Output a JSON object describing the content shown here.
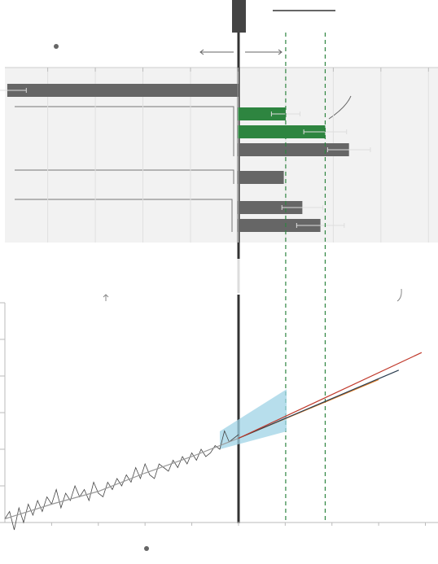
{
  "chart_data": [
    {
      "type": "bar",
      "orientation": "horizontal",
      "values": [
        -4.85,
        1.0,
        1.83,
        2.33,
        0.96,
        1.35,
        1.73
      ],
      "errors": [
        0.4,
        0.3,
        0.45,
        0.45,
        null,
        0.43,
        0.5
      ],
      "colors": [
        "#666666",
        "#2e8540",
        "#2e8540",
        "#666666",
        "#666666",
        "#666666",
        "#666666"
      ],
      "xlim": [
        -4.9,
        4.2
      ],
      "xticks": [
        -4,
        -3,
        -2,
        -1,
        0,
        1,
        2,
        3,
        4
      ],
      "reference_lines": [
        1.0,
        1.83
      ],
      "grid": true
    },
    {
      "type": "line",
      "xlim": [
        0,
        92.7
      ],
      "ylim": [
        0,
        6
      ],
      "yticks": [
        0,
        1,
        2,
        3,
        4,
        5,
        6
      ],
      "xticks": [
        10,
        20,
        30,
        40,
        50,
        60,
        70,
        80,
        90
      ],
      "series": [
        {
          "color": "#444444",
          "x": [
            0,
            1,
            2,
            3,
            4,
            5,
            6,
            7,
            8,
            9,
            10,
            11,
            12,
            13,
            14,
            15,
            16,
            17,
            18,
            19,
            20,
            21,
            22,
            23,
            24,
            25,
            26,
            27,
            28,
            29,
            30,
            31,
            32,
            33,
            34,
            35,
            36,
            37,
            38,
            39,
            40,
            41,
            42,
            43,
            44,
            45,
            46,
            47,
            48,
            49,
            50
          ],
          "values": [
            0.1,
            0.3,
            -0.2,
            0.4,
            0.0,
            0.5,
            0.2,
            0.6,
            0.3,
            0.7,
            0.5,
            0.9,
            0.4,
            0.8,
            0.6,
            1.0,
            0.7,
            0.9,
            0.6,
            1.1,
            0.8,
            0.7,
            1.1,
            0.9,
            1.2,
            1.0,
            1.3,
            1.1,
            1.5,
            1.2,
            1.6,
            1.3,
            1.2,
            1.6,
            1.5,
            1.4,
            1.7,
            1.5,
            1.8,
            1.6,
            1.9,
            1.7,
            2.0,
            1.8,
            1.9,
            2.1,
            2.0,
            2.5,
            2.2,
            2.3,
            2.4
          ]
        },
        {
          "color": "#999999",
          "x": [
            0,
            10,
            20,
            30,
            40,
            50
          ],
          "values": [
            0.1,
            0.5,
            0.85,
            1.35,
            1.8,
            2.3
          ]
        },
        {
          "color": "#e67e22",
          "x": [
            50,
            80
          ],
          "values": [
            2.3,
            3.9
          ]
        },
        {
          "color": "#2c3e50",
          "x": [
            50,
            84.3
          ],
          "values": [
            2.3,
            4.16
          ]
        },
        {
          "color": "#c0392b",
          "x": [
            50,
            89.2
          ],
          "values": [
            2.3,
            4.64
          ]
        }
      ],
      "band": {
        "color": "#9fd3e6",
        "x": [
          46,
          60.3
        ],
        "lower": [
          2.0,
          2.49
        ],
        "upper": [
          2.49,
          3.64
        ]
      }
    }
  ]
}
